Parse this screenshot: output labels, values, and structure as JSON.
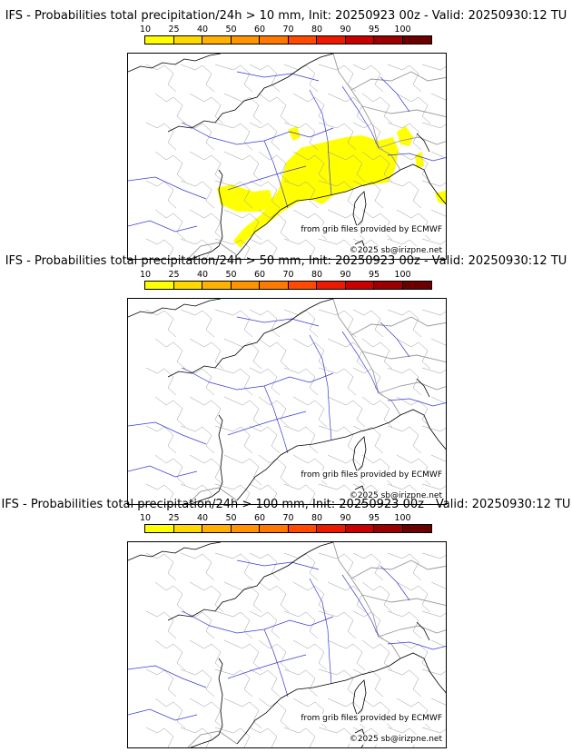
{
  "colorbar": {
    "ticks": [
      "10",
      "25",
      "40",
      "50",
      "60",
      "70",
      "80",
      "90",
      "95",
      "100"
    ],
    "colors": [
      "#ffff00",
      "#ffd800",
      "#ffb000",
      "#ff9400",
      "#ff7800",
      "#ff4a00",
      "#ec1a00",
      "#c80000",
      "#9a0000",
      "#6a0000"
    ]
  },
  "panels": [
    {
      "title": "IFS - Probabilities total precipitation/24h > 10 mm, Init: 20250923 00z - Valid: 20250930:12 TU",
      "threshold_mm": 10,
      "precip_area_color": "#ffff00",
      "credit": "from grib files provided by ECMWF",
      "copyright": "©2025 sb@irizpne.net"
    },
    {
      "title": "IFS - Probabilities total precipitation/24h > 50 mm, Init: 20250923 00z - Valid: 20250930:12 TU",
      "threshold_mm": 50,
      "credit": "from grib files provided by ECMWF",
      "copyright": "©2025 sb@irizpne.net"
    },
    {
      "title": "IFS - Probabilities total precipitation/24h > 100 mm, Init: 20250923 00z - Valid: 20250930:12 TU",
      "threshold_mm": 100,
      "credit": "from grib files provided by ECMWF",
      "copyright": "©2025 sb@irizpne.net"
    }
  ],
  "map_colors": {
    "coastline": "#000000",
    "rivers": "#3a3ad8",
    "borders": "#999999"
  }
}
